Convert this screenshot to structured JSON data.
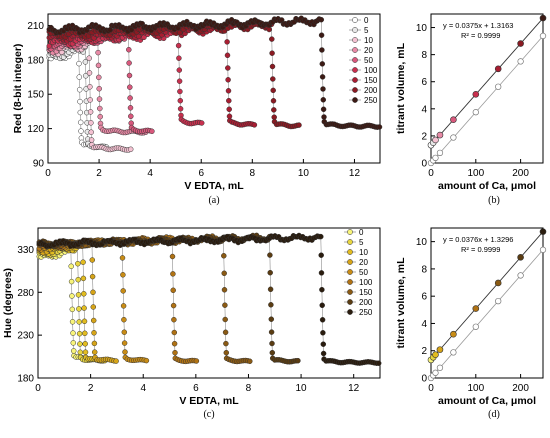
{
  "chart_data": [
    {
      "id": "a",
      "panel_label": "(a)",
      "type": "scatter",
      "xlabel": "V EDTA, mL",
      "ylabel": "Red (8-bit integer)",
      "xlim": [
        0,
        13
      ],
      "ylim": [
        90,
        220
      ],
      "xticks": [
        0,
        2,
        4,
        6,
        8,
        10,
        12
      ],
      "yticks": [
        90,
        120,
        150,
        180,
        210
      ],
      "legend": {
        "position": "right",
        "entries": [
          "0",
          "5",
          "10",
          "20",
          "50",
          "100",
          "150",
          "200",
          "250"
        ]
      },
      "series": [
        {
          "name": "0",
          "color": "#ffffff",
          "high": 186,
          "low": 104,
          "xend": 1.2,
          "xtail": 1.8
        },
        {
          "name": "5",
          "color": "#e8e8e8",
          "high": 188,
          "low": 103,
          "xend": 1.45,
          "xtail": 2.3
        },
        {
          "name": "10",
          "color": "#f4c2d2",
          "high": 192,
          "low": 102,
          "xend": 1.6,
          "xtail": 3.3
        },
        {
          "name": "20",
          "color": "#e88aa6",
          "high": 195,
          "low": 117,
          "xend": 1.95,
          "xtail": 3.9
        },
        {
          "name": "50",
          "color": "#d8587c",
          "high": 198,
          "low": 117,
          "xend": 3.15,
          "xtail": 4.1
        },
        {
          "name": "100",
          "color": "#c8304e",
          "high": 201,
          "low": 124,
          "xend": 5.1,
          "xtail": 6.1
        },
        {
          "name": "150",
          "color": "#a81e32",
          "high": 205,
          "low": 123,
          "xend": 7.0,
          "xtail": 8.1
        },
        {
          "name": "200",
          "color": "#8a1a22",
          "high": 208,
          "low": 122,
          "xend": 8.75,
          "xtail": 9.9
        },
        {
          "name": "250",
          "color": "#3c1a14",
          "high": 212,
          "low": 122,
          "xend": 10.7,
          "xtail": 13.0
        }
      ]
    },
    {
      "id": "b",
      "panel_label": "(b)",
      "type": "scatter",
      "xlabel": "amount of Ca, μmol",
      "ylabel": "titrant volume, mL",
      "xlim": [
        0,
        250
      ],
      "ylim": [
        0,
        11
      ],
      "xticks": [
        0,
        100,
        200
      ],
      "yticks": [
        0,
        2,
        4,
        6,
        8,
        10
      ],
      "annotation": [
        "y = 0.0375x + 1.3163",
        "R² = 0.9999"
      ],
      "fit": {
        "slope": 0.0375,
        "intercept": 1.3163
      },
      "ref_slope": 0.0375,
      "points": {
        "x": [
          0,
          5,
          10,
          20,
          50,
          100,
          150,
          200,
          250
        ],
        "y": [
          1.32,
          1.5,
          1.7,
          2.06,
          3.2,
          5.07,
          6.95,
          8.82,
          10.7
        ],
        "open_y": [
          0.0,
          0.19,
          0.38,
          0.75,
          1.88,
          3.75,
          5.63,
          7.5,
          9.38
        ],
        "colors": [
          "#ffffff",
          "#e8e8e8",
          "#f4c2d2",
          "#e88aa6",
          "#d8587c",
          "#c8304e",
          "#a81e32",
          "#8a1a22",
          "#3c1a14"
        ]
      }
    },
    {
      "id": "c",
      "panel_label": "(c)",
      "type": "scatter",
      "xlabel": "V EDTA, mL",
      "ylabel": "Hue (degrees)",
      "xlim": [
        0,
        13
      ],
      "ylim": [
        180,
        355
      ],
      "xticks": [
        0,
        2,
        4,
        6,
        8,
        10,
        12
      ],
      "yticks": [
        180,
        230,
        280,
        330
      ],
      "legend": {
        "position": "right",
        "entries": [
          "0",
          "5",
          "10",
          "20",
          "50",
          "100",
          "150",
          "200",
          "250"
        ]
      },
      "series": [
        {
          "name": "0",
          "color": "#f8f47a",
          "high": 326,
          "low": 202,
          "xend": 1.25,
          "xtail": 2.0
        },
        {
          "name": "5",
          "color": "#e8d640",
          "high": 330,
          "low": 200,
          "xend": 1.5,
          "xtail": 2.2
        },
        {
          "name": "10",
          "color": "#e2bc20",
          "high": 332,
          "low": 200,
          "xend": 1.7,
          "xtail": 2.6
        },
        {
          "name": "20",
          "color": "#d6a418",
          "high": 335,
          "low": 200,
          "xend": 2.05,
          "xtail": 3.0
        },
        {
          "name": "50",
          "color": "#c88c16",
          "high": 338,
          "low": 200,
          "xend": 3.2,
          "xtail": 4.2
        },
        {
          "name": "100",
          "color": "#b07214",
          "high": 340,
          "low": 199,
          "xend": 5.1,
          "xtail": 6.1
        },
        {
          "name": "150",
          "color": "#8a5a14",
          "high": 341,
          "low": 199,
          "xend": 7.05,
          "xtail": 8.1
        },
        {
          "name": "200",
          "color": "#5a3c12",
          "high": 342,
          "low": 199,
          "xend": 8.8,
          "xtail": 9.9
        },
        {
          "name": "250",
          "color": "#2a1c0e",
          "high": 342,
          "low": 198,
          "xend": 10.75,
          "xtail": 13.0
        }
      ]
    },
    {
      "id": "d",
      "panel_label": "(d)",
      "type": "scatter",
      "xlabel": "amount of Ca, μmol",
      "ylabel": "titrant volume, mL",
      "xlim": [
        0,
        250
      ],
      "ylim": [
        0,
        11
      ],
      "xticks": [
        0,
        100,
        200
      ],
      "yticks": [
        0,
        2,
        4,
        6,
        8,
        10
      ],
      "annotation": [
        "y = 0.0376x + 1.3296",
        "R² = 0.9999"
      ],
      "fit": {
        "slope": 0.0376,
        "intercept": 1.3296
      },
      "ref_slope": 0.0376,
      "points": {
        "x": [
          0,
          5,
          10,
          20,
          50,
          100,
          150,
          200,
          250
        ],
        "y": [
          1.33,
          1.52,
          1.71,
          2.08,
          3.21,
          5.09,
          6.97,
          8.85,
          10.73
        ],
        "open_y": [
          0.0,
          0.19,
          0.38,
          0.75,
          1.88,
          3.76,
          5.64,
          7.52,
          9.4
        ],
        "colors": [
          "#f8f47a",
          "#e8d640",
          "#e2bc20",
          "#d6a418",
          "#c88c16",
          "#b07214",
          "#8a5a14",
          "#5a3c12",
          "#2a1c0e"
        ]
      }
    }
  ]
}
